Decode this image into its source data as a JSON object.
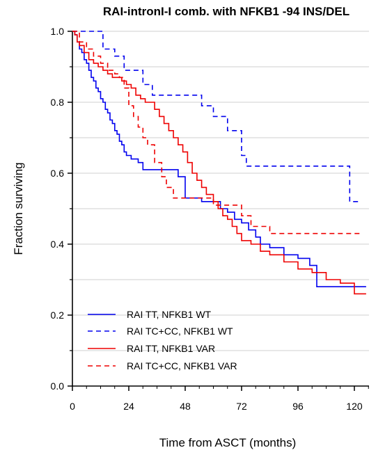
{
  "chart_data": {
    "type": "line",
    "subtype": "kaplan-meier-step",
    "title": "RAI-intronI-I comb. with NFKB1 -94 INS/DEL",
    "xlabel": "Time from ASCT (months)",
    "ylabel": "Fraction surviving",
    "xlim": [
      0,
      130
    ],
    "ylim": [
      0,
      1.0
    ],
    "xticks": [
      0,
      24,
      48,
      72,
      96,
      120
    ],
    "yticks": [
      0.0,
      0.2,
      0.4,
      0.6,
      0.8,
      1.0
    ],
    "xtick_labels": [
      "0",
      "24",
      "48",
      "72",
      "96",
      "120"
    ],
    "ytick_labels": [
      "0.0",
      "0.2",
      "0.4",
      "0.6",
      "0.8",
      "1.0"
    ],
    "grid": "horizontal",
    "legend_position": "bottom-left",
    "series": [
      {
        "name": "RAI TT, NFKB1 WT",
        "color": "#0000ee",
        "dash": "solid",
        "x": [
          0,
          1,
          2,
          3,
          4,
          5,
          6,
          7,
          8,
          9,
          10,
          11,
          12,
          13,
          14,
          15,
          16,
          17,
          18,
          19,
          20,
          21,
          22,
          23,
          24,
          25,
          26,
          28,
          30,
          33,
          36,
          40,
          45,
          48,
          52,
          55,
          60,
          63,
          66,
          69,
          72,
          75,
          78,
          80,
          84,
          90,
          96,
          101,
          104,
          110,
          116,
          125
        ],
        "y": [
          1.0,
          0.99,
          0.97,
          0.95,
          0.94,
          0.92,
          0.91,
          0.89,
          0.87,
          0.86,
          0.84,
          0.83,
          0.81,
          0.8,
          0.78,
          0.77,
          0.75,
          0.74,
          0.72,
          0.71,
          0.69,
          0.68,
          0.66,
          0.65,
          0.65,
          0.64,
          0.64,
          0.63,
          0.61,
          0.61,
          0.61,
          0.61,
          0.59,
          0.53,
          0.53,
          0.52,
          0.52,
          0.5,
          0.49,
          0.47,
          0.46,
          0.44,
          0.42,
          0.4,
          0.39,
          0.37,
          0.36,
          0.34,
          0.28,
          0.28,
          0.28,
          0.28
        ]
      },
      {
        "name": "RAI TC+CC, NFKB1 WT",
        "color": "#0000ee",
        "dash": "dashed",
        "x": [
          0,
          2,
          6,
          13,
          18,
          22,
          30,
          34,
          40,
          48,
          55,
          60,
          64,
          66,
          72,
          74,
          84,
          90,
          96,
          116,
          118,
          123
        ],
        "y": [
          1.0,
          1.0,
          1.0,
          0.95,
          0.93,
          0.89,
          0.85,
          0.82,
          0.82,
          0.82,
          0.79,
          0.76,
          0.76,
          0.72,
          0.65,
          0.62,
          0.62,
          0.62,
          0.62,
          0.62,
          0.52,
          0.52
        ]
      },
      {
        "name": "RAI TT, NFKB1 VAR",
        "color": "#ee0000",
        "dash": "solid",
        "x": [
          0,
          1,
          2,
          3,
          5,
          7,
          9,
          11,
          13,
          15,
          17,
          19,
          21,
          23,
          25,
          27,
          29,
          31,
          33,
          35,
          37,
          39,
          41,
          43,
          45,
          47,
          49,
          51,
          53,
          55,
          57,
          60,
          62,
          64,
          66,
          68,
          70,
          72,
          76,
          80,
          84,
          90,
          96,
          102,
          108,
          114,
          120,
          125
        ],
        "y": [
          1.0,
          0.99,
          0.97,
          0.96,
          0.94,
          0.92,
          0.91,
          0.9,
          0.89,
          0.88,
          0.87,
          0.87,
          0.86,
          0.85,
          0.84,
          0.82,
          0.81,
          0.8,
          0.8,
          0.78,
          0.76,
          0.74,
          0.72,
          0.7,
          0.68,
          0.66,
          0.63,
          0.6,
          0.58,
          0.56,
          0.54,
          0.52,
          0.5,
          0.48,
          0.47,
          0.45,
          0.43,
          0.41,
          0.4,
          0.38,
          0.37,
          0.35,
          0.33,
          0.32,
          0.3,
          0.29,
          0.26,
          0.26
        ]
      },
      {
        "name": "RAI TC+CC, NFKB1 VAR",
        "color": "#ee0000",
        "dash": "dashed",
        "x": [
          0,
          3,
          6,
          9,
          12,
          15,
          18,
          20,
          22,
          24,
          26,
          28,
          30,
          32,
          35,
          38,
          40,
          43,
          46,
          50,
          55,
          60,
          66,
          72,
          76,
          80,
          84,
          96,
          108,
          120,
          123
        ],
        "y": [
          1.0,
          0.97,
          0.95,
          0.93,
          0.91,
          0.89,
          0.88,
          0.87,
          0.84,
          0.79,
          0.76,
          0.73,
          0.7,
          0.68,
          0.63,
          0.59,
          0.56,
          0.53,
          0.53,
          0.53,
          0.53,
          0.51,
          0.51,
          0.48,
          0.45,
          0.45,
          0.43,
          0.43,
          0.43,
          0.43,
          0.43
        ]
      }
    ]
  }
}
